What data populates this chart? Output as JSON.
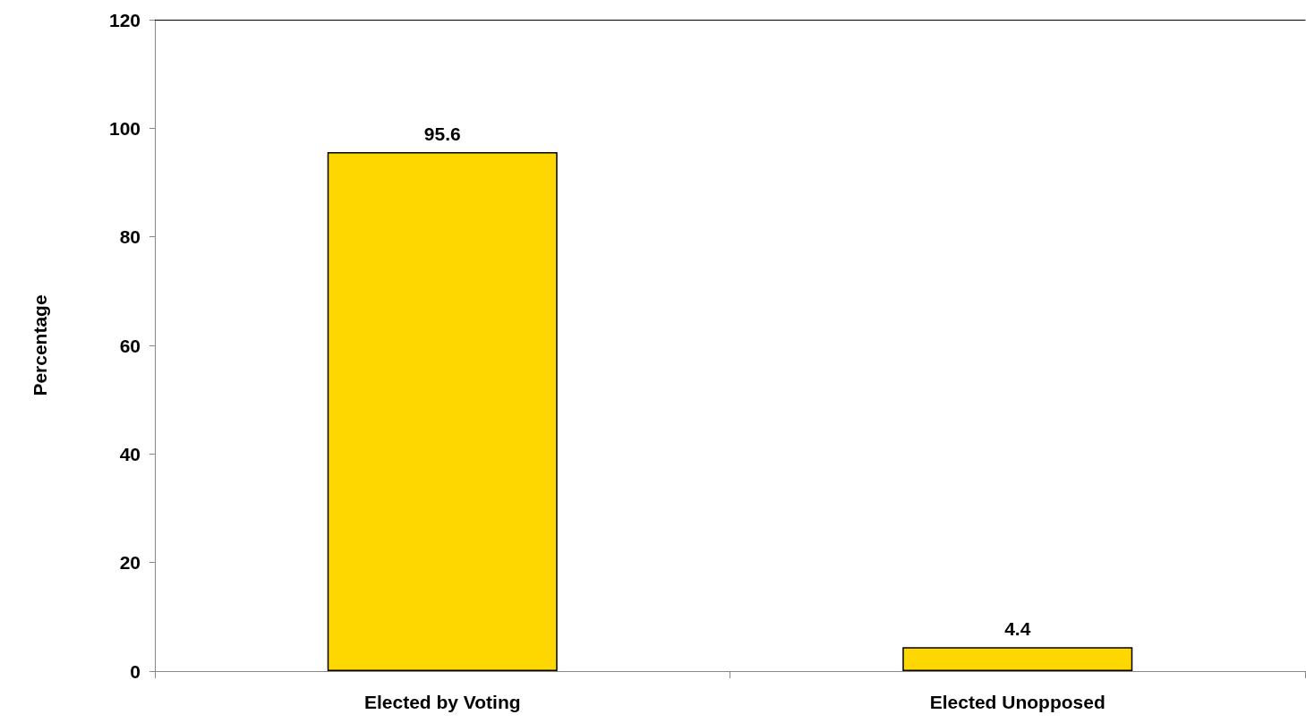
{
  "chart_data": {
    "type": "bar",
    "ylabel": "Percentage",
    "categories": [
      "Elected by Voting",
      "Elected Unopposed"
    ],
    "values": [
      95.6,
      4.4
    ],
    "color": "#ffd700",
    "ylim": [
      0,
      120
    ],
    "yticks": [
      0,
      20,
      40,
      60,
      80,
      100,
      120
    ],
    "data_labels": true,
    "grid": false
  }
}
